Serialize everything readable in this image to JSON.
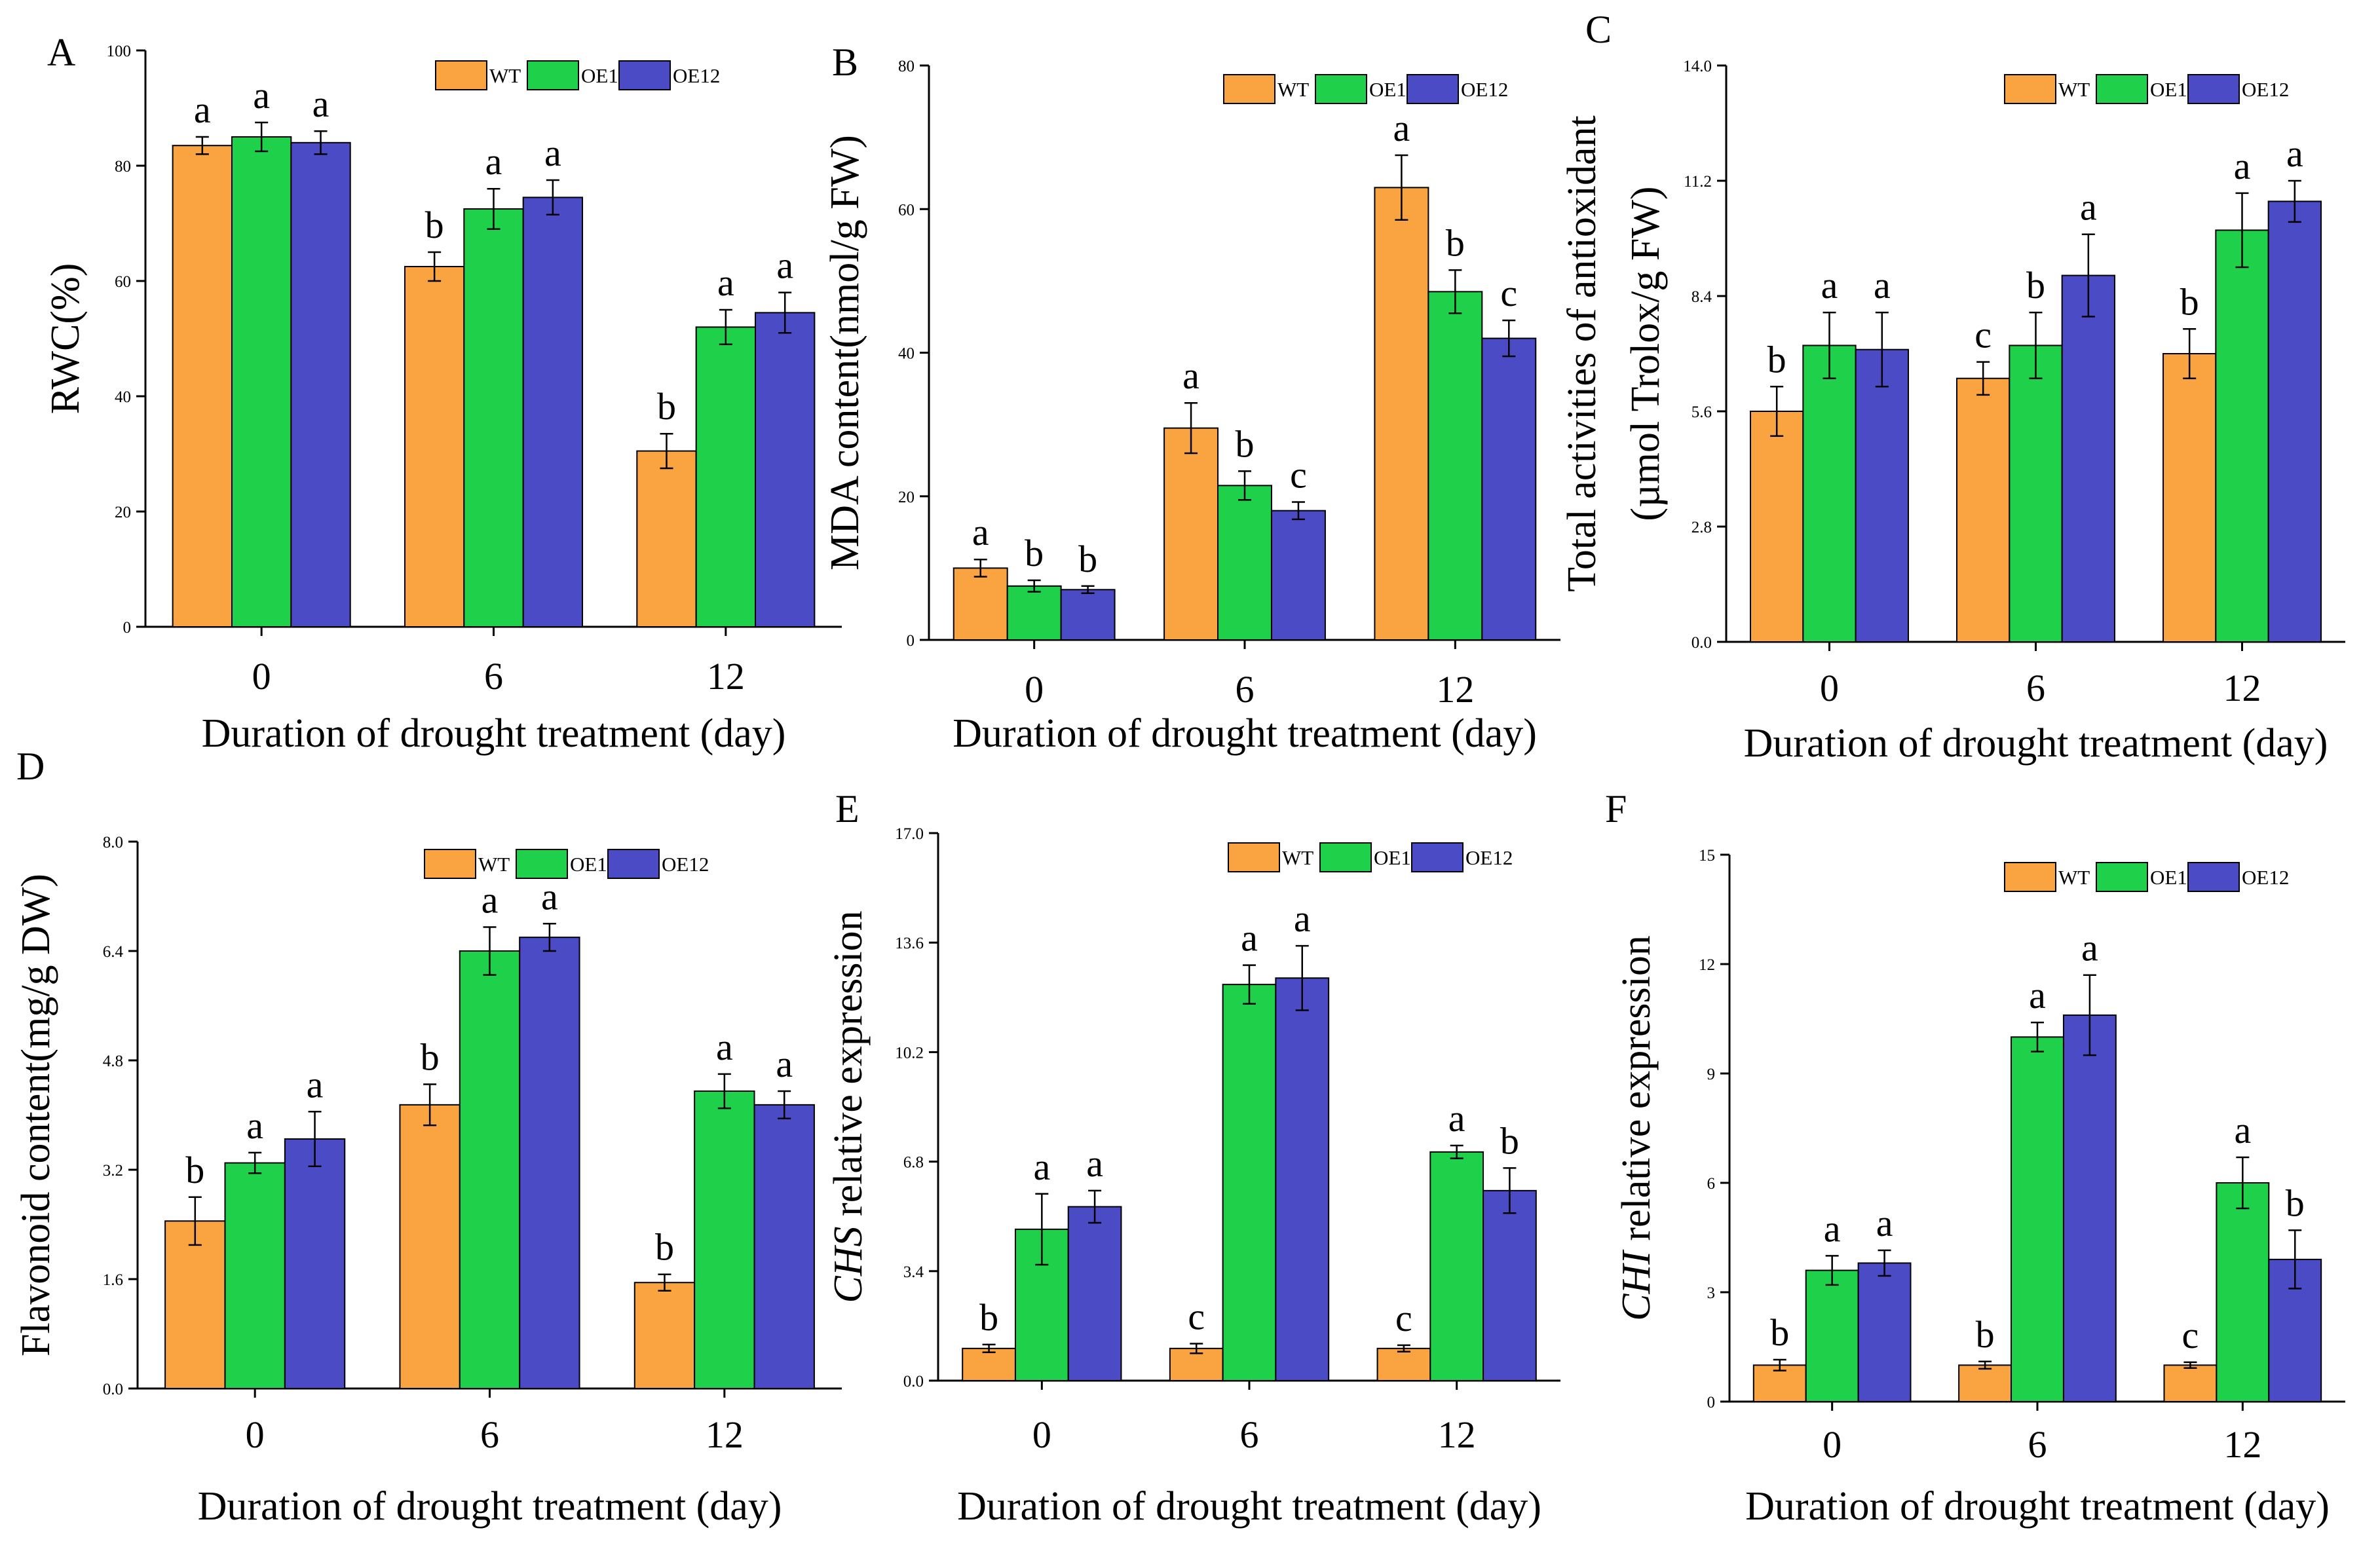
{
  "colors": {
    "WT": "#f9a440",
    "OE1": "#1fd04a",
    "OE12": "#4b4bc6",
    "axis": "#000000",
    "error": "#000000"
  },
  "chart_data": [
    {
      "type": "bar",
      "panel": "A",
      "ylabel": "RWC(%)",
      "xlabel": "Duration of drought treatment (day)",
      "categories": [
        "0",
        "6",
        "12"
      ],
      "ylim": [
        0,
        100
      ],
      "yticks": [
        "0",
        "20",
        "40",
        "60",
        "80",
        "100"
      ],
      "series": [
        {
          "name": "WT",
          "values": [
            83.5,
            62.5,
            30.5
          ],
          "errors": [
            1.5,
            2.5,
            3.0
          ]
        },
        {
          "name": "OE1",
          "values": [
            85.0,
            72.5,
            52.0
          ],
          "errors": [
            2.5,
            3.5,
            3.0
          ]
        },
        {
          "name": "OE12",
          "values": [
            84.0,
            74.5,
            54.5
          ],
          "errors": [
            2.0,
            3.0,
            3.5
          ]
        }
      ],
      "significance": [
        [
          "a",
          "a",
          "a"
        ],
        [
          "b",
          "a",
          "a"
        ],
        [
          "b",
          "a",
          "a"
        ]
      ]
    },
    {
      "type": "bar",
      "panel": "B",
      "ylabel": "MDA content(nmol/g FW)",
      "xlabel": "Duration of drought treatment (day)",
      "categories": [
        "0",
        "6",
        "12"
      ],
      "ylim": [
        0,
        80
      ],
      "yticks": [
        "0",
        "20",
        "40",
        "60",
        "80"
      ],
      "series": [
        {
          "name": "WT",
          "values": [
            10.0,
            29.5,
            63.0
          ],
          "errors": [
            1.2,
            3.5,
            4.5
          ]
        },
        {
          "name": "OE1",
          "values": [
            7.5,
            21.5,
            48.5
          ],
          "errors": [
            0.8,
            2.0,
            3.0
          ]
        },
        {
          "name": "OE12",
          "values": [
            7.0,
            18.0,
            42.0
          ],
          "errors": [
            0.5,
            1.2,
            2.5
          ]
        }
      ],
      "significance": [
        [
          "a",
          "b",
          "b"
        ],
        [
          "a",
          "b",
          "c"
        ],
        [
          "a",
          "b",
          "c"
        ]
      ]
    },
    {
      "type": "bar",
      "panel": "C",
      "ylabel": "Total activities of antioxidant",
      "ylabel2": "(µmol Trolox/g FW)",
      "xlabel": "Duration of drought treatment (day)",
      "categories": [
        "0",
        "6",
        "12"
      ],
      "ylim": [
        0,
        14
      ],
      "yticks": [
        "0.0",
        "2.8",
        "5.6",
        "8.4",
        "11.2",
        "14.0"
      ],
      "series": [
        {
          "name": "WT",
          "values": [
            5.6,
            6.4,
            7.0
          ],
          "errors": [
            0.6,
            0.4,
            0.6
          ]
        },
        {
          "name": "OE1",
          "values": [
            7.2,
            7.2,
            10.0
          ],
          "errors": [
            0.8,
            0.8,
            0.9
          ]
        },
        {
          "name": "OE12",
          "values": [
            7.1,
            8.9,
            10.7
          ],
          "errors": [
            0.9,
            1.0,
            0.5
          ]
        }
      ],
      "significance": [
        [
          "b",
          "a",
          "a"
        ],
        [
          "c",
          "b",
          "a"
        ],
        [
          "b",
          "a",
          "a"
        ]
      ]
    },
    {
      "type": "bar",
      "panel": "D",
      "ylabel": "Flavonoid content(mg/g DW)",
      "xlabel": "Duration of drought treatment (day)",
      "categories": [
        "0",
        "6",
        "12"
      ],
      "ylim": [
        0,
        8
      ],
      "yticks": [
        "0.0",
        "1.6",
        "3.2",
        "4.8",
        "6.4",
        "8.0"
      ],
      "series": [
        {
          "name": "WT",
          "values": [
            2.45,
            4.15,
            1.55
          ],
          "errors": [
            0.35,
            0.3,
            0.12
          ]
        },
        {
          "name": "OE1",
          "values": [
            3.3,
            6.4,
            4.35
          ],
          "errors": [
            0.15,
            0.35,
            0.25
          ]
        },
        {
          "name": "OE12",
          "values": [
            3.65,
            6.6,
            4.15
          ],
          "errors": [
            0.4,
            0.2,
            0.2
          ]
        }
      ],
      "significance": [
        [
          "b",
          "a",
          "a"
        ],
        [
          "b",
          "a",
          "a"
        ],
        [
          "b",
          "a",
          "a"
        ]
      ]
    },
    {
      "type": "bar",
      "panel": "E",
      "ylabel_italic": "CHS",
      "ylabel": " relative expression",
      "xlabel": "Duration of drought treatment (day)",
      "categories": [
        "0",
        "6",
        "12"
      ],
      "ylim": [
        0,
        17
      ],
      "yticks": [
        "0.0",
        "3.4",
        "6.8",
        "10.2",
        "13.6",
        "17.0"
      ],
      "series": [
        {
          "name": "WT",
          "values": [
            1.0,
            1.0,
            1.0
          ],
          "errors": [
            0.12,
            0.15,
            0.1
          ]
        },
        {
          "name": "OE1",
          "values": [
            4.7,
            12.3,
            7.1
          ],
          "errors": [
            1.1,
            0.6,
            0.2
          ]
        },
        {
          "name": "OE12",
          "values": [
            5.4,
            12.5,
            5.9
          ],
          "errors": [
            0.5,
            1.0,
            0.7
          ]
        }
      ],
      "significance": [
        [
          "b",
          "a",
          "a"
        ],
        [
          "c",
          "a",
          "a"
        ],
        [
          "c",
          "a",
          "b"
        ]
      ]
    },
    {
      "type": "bar",
      "panel": "F",
      "ylabel_italic": "CHI",
      "ylabel": " relative expression",
      "xlabel": "Duration of drought treatment (day)",
      "categories": [
        "0",
        "6",
        "12"
      ],
      "ylim": [
        0,
        15
      ],
      "yticks": [
        "0",
        "3",
        "6",
        "9",
        "12",
        "15"
      ],
      "series": [
        {
          "name": "WT",
          "values": [
            1.0,
            1.0,
            1.0
          ],
          "errors": [
            0.15,
            0.1,
            0.08
          ]
        },
        {
          "name": "OE1",
          "values": [
            3.6,
            10.0,
            6.0
          ],
          "errors": [
            0.4,
            0.4,
            0.7
          ]
        },
        {
          "name": "OE12",
          "values": [
            3.8,
            10.6,
            3.9
          ],
          "errors": [
            0.35,
            1.1,
            0.8
          ]
        }
      ],
      "significance": [
        [
          "b",
          "a",
          "a"
        ],
        [
          "b",
          "a",
          "a"
        ],
        [
          "c",
          "a",
          "b"
        ]
      ]
    }
  ],
  "legend": [
    "WT",
    "OE1",
    "OE12"
  ]
}
